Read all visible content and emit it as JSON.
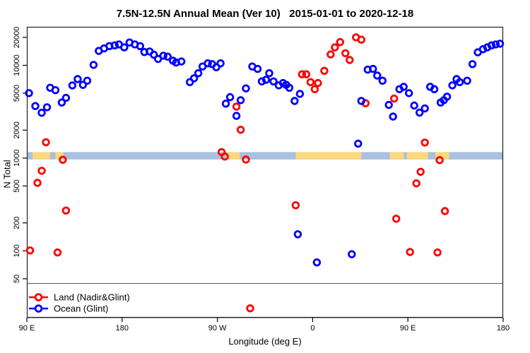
{
  "title": "7.5N-12.5N Annual Mean (Ver 10)   2015-01-01 to 2020-12-18",
  "colors": {
    "land": "#ff0000",
    "ocean": "#0000ff",
    "band_ocean": "#a9c0e0",
    "band_land": "#fcd87f",
    "frame": "#222222",
    "legend_border": "#555555"
  },
  "chart_data": {
    "type": "scatter",
    "title": "7.5N-12.5N Annual Mean (Ver 10)   2015-01-01 to 2020-12-18",
    "xlabel": "Longitude (deg E)",
    "ylabel": "N Total",
    "marker": "open-circle",
    "grid": false,
    "x_axis": {
      "note": "longitude axis starting at 90E going eastward 450 degrees",
      "range_deg": [
        90,
        540
      ],
      "ticks_deg": [
        90,
        180,
        270,
        360,
        450,
        540
      ],
      "tick_labels": [
        "90 E",
        "180",
        "90 W",
        "0",
        "90 E",
        "180"
      ]
    },
    "y_axis": {
      "scale": "log",
      "ticks": [
        50,
        100,
        200,
        500,
        1000,
        2000,
        5000,
        10000,
        20000
      ],
      "range": [
        16,
        26000
      ]
    },
    "map_band": {
      "value_range": [
        965,
        1160
      ],
      "ocean_color": "#a9c0e0",
      "land_color": "#fcd87f",
      "land_segments_deg": [
        [
          95.5,
          112
        ],
        [
          117,
          124.5
        ],
        [
          278,
          291
        ],
        [
          344,
          406
        ],
        [
          433,
          446
        ],
        [
          449,
          469
        ],
        [
          476,
          489
        ]
      ]
    },
    "legend": [
      {
        "label": "Land (Nadir&Glint)",
        "color": "#ff0000"
      },
      {
        "label": "Ocean (Glint)",
        "color": "#0000ff"
      }
    ],
    "series": [
      {
        "name": "Land (Nadir&Glint)",
        "color": "#ff0000",
        "points": [
          [
            93,
            101
          ],
          [
            100,
            541
          ],
          [
            104,
            729
          ],
          [
            108,
            1480
          ],
          [
            119,
            96
          ],
          [
            124,
            959
          ],
          [
            127,
            272
          ],
          [
            274,
            1160
          ],
          [
            277,
            1040
          ],
          [
            288,
            3590
          ],
          [
            292,
            2020
          ],
          [
            297,
            964
          ],
          [
            301,
            24
          ],
          [
            344,
            310
          ],
          [
            350,
            8000
          ],
          [
            354,
            8000
          ],
          [
            358,
            6590
          ],
          [
            362,
            5530
          ],
          [
            365,
            6440
          ],
          [
            371,
            8730
          ],
          [
            377,
            13100
          ],
          [
            381,
            15600
          ],
          [
            386,
            17800
          ],
          [
            391,
            13500
          ],
          [
            395,
            11400
          ],
          [
            401,
            20000
          ],
          [
            406,
            18900
          ],
          [
            410,
            3900
          ],
          [
            437,
            4380
          ],
          [
            439,
            222
          ],
          [
            452,
            97
          ],
          [
            458,
            534
          ],
          [
            462,
            712
          ],
          [
            466,
            1470
          ],
          [
            478,
            96
          ],
          [
            480,
            950
          ],
          [
            485,
            268
          ]
        ]
      },
      {
        "name": "Ocean (Glint)",
        "color": "#0000ff",
        "points": [
          [
            92,
            5010
          ],
          [
            98,
            3640
          ],
          [
            104,
            3080
          ],
          [
            109,
            3530
          ],
          [
            112,
            5730
          ],
          [
            117,
            5400
          ],
          [
            123,
            3970
          ],
          [
            127,
            4460
          ],
          [
            133,
            6070
          ],
          [
            138,
            7110
          ],
          [
            143,
            6150
          ],
          [
            147,
            6820
          ],
          [
            153,
            10100
          ],
          [
            158,
            14300
          ],
          [
            163,
            15200
          ],
          [
            168,
            16100
          ],
          [
            173,
            16400
          ],
          [
            177,
            16800
          ],
          [
            182,
            15600
          ],
          [
            187,
            17600
          ],
          [
            192,
            16800
          ],
          [
            197,
            16100
          ],
          [
            201,
            13900
          ],
          [
            206,
            14100
          ],
          [
            210,
            13000
          ],
          [
            214,
            11700
          ],
          [
            219,
            12700
          ],
          [
            223,
            12400
          ],
          [
            228,
            11200
          ],
          [
            231,
            10700
          ],
          [
            236,
            11000
          ],
          [
            244,
            6590
          ],
          [
            248,
            7240
          ],
          [
            252,
            8220
          ],
          [
            256,
            9700
          ],
          [
            261,
            10500
          ],
          [
            265,
            10300
          ],
          [
            269,
            9530
          ],
          [
            273,
            10500
          ],
          [
            278,
            3860
          ],
          [
            282,
            4540
          ],
          [
            288,
            2850
          ],
          [
            292,
            4210
          ],
          [
            297,
            5640
          ],
          [
            303,
            9700
          ],
          [
            308,
            9140
          ],
          [
            312,
            6710
          ],
          [
            316,
            6980
          ],
          [
            319,
            8220
          ],
          [
            323,
            6710
          ],
          [
            328,
            6080
          ],
          [
            332,
            6440
          ],
          [
            335,
            6150
          ],
          [
            338,
            5730
          ],
          [
            343,
            4130
          ],
          [
            346,
            151
          ],
          [
            348,
            4920
          ],
          [
            364,
            75
          ],
          [
            397,
            92
          ],
          [
            403,
            1430
          ],
          [
            406,
            4130
          ],
          [
            412,
            8980
          ],
          [
            417,
            9140
          ],
          [
            421,
            7760
          ],
          [
            426,
            6820
          ],
          [
            432,
            3740
          ],
          [
            436,
            2800
          ],
          [
            442,
            5530
          ],
          [
            446,
            5860
          ],
          [
            451,
            5010
          ],
          [
            456,
            3680
          ],
          [
            461,
            3090
          ],
          [
            466,
            3430
          ],
          [
            471,
            5860
          ],
          [
            475,
            5530
          ],
          [
            481,
            3970
          ],
          [
            484,
            4210
          ],
          [
            487,
            4590
          ],
          [
            492,
            6080
          ],
          [
            496,
            7110
          ],
          [
            499,
            6590
          ],
          [
            506,
            6820
          ],
          [
            511,
            10300
          ],
          [
            516,
            13800
          ],
          [
            521,
            14900
          ],
          [
            525,
            15600
          ],
          [
            529,
            16400
          ],
          [
            533,
            16800
          ],
          [
            537,
            17100
          ]
        ]
      }
    ]
  }
}
